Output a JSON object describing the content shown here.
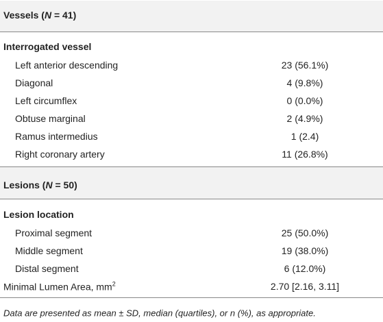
{
  "table": {
    "sections": [
      {
        "title": {
          "before": "Vessels (",
          "italic": "N",
          "after": " = 41)"
        },
        "group": {
          "label": "Interrogated vessel",
          "rows": [
            [
              "Left anterior descending",
              "23 (56.1%)"
            ],
            [
              "Diagonal",
              "4 (9.8%)"
            ],
            [
              "Left circumflex",
              "0 (0.0%)"
            ],
            [
              "Obtuse marginal",
              "2 (4.9%)"
            ],
            [
              "Ramus intermedius",
              "1 (2.4)"
            ],
            [
              "Right coronary artery",
              "11 (26.8%)"
            ]
          ]
        }
      },
      {
        "title": {
          "before": "Lesions (",
          "italic": "N",
          "after": " = 50)"
        },
        "group": {
          "label": "Lesion location",
          "rows": [
            [
              "Proximal segment",
              "25 (50.0%)"
            ],
            [
              "Middle segment",
              "19 (38.0%)"
            ],
            [
              "Distal segment",
              "6 (12.0%)"
            ]
          ]
        }
      }
    ],
    "last_row": {
      "label": "Minimal Lumen Area, mm",
      "sup": "2",
      "value": "2.70 [2.16, 3.11]"
    }
  },
  "footnote": "Data are presented as mean ± SD, median (quartiles), or n (%), as appropriate."
}
